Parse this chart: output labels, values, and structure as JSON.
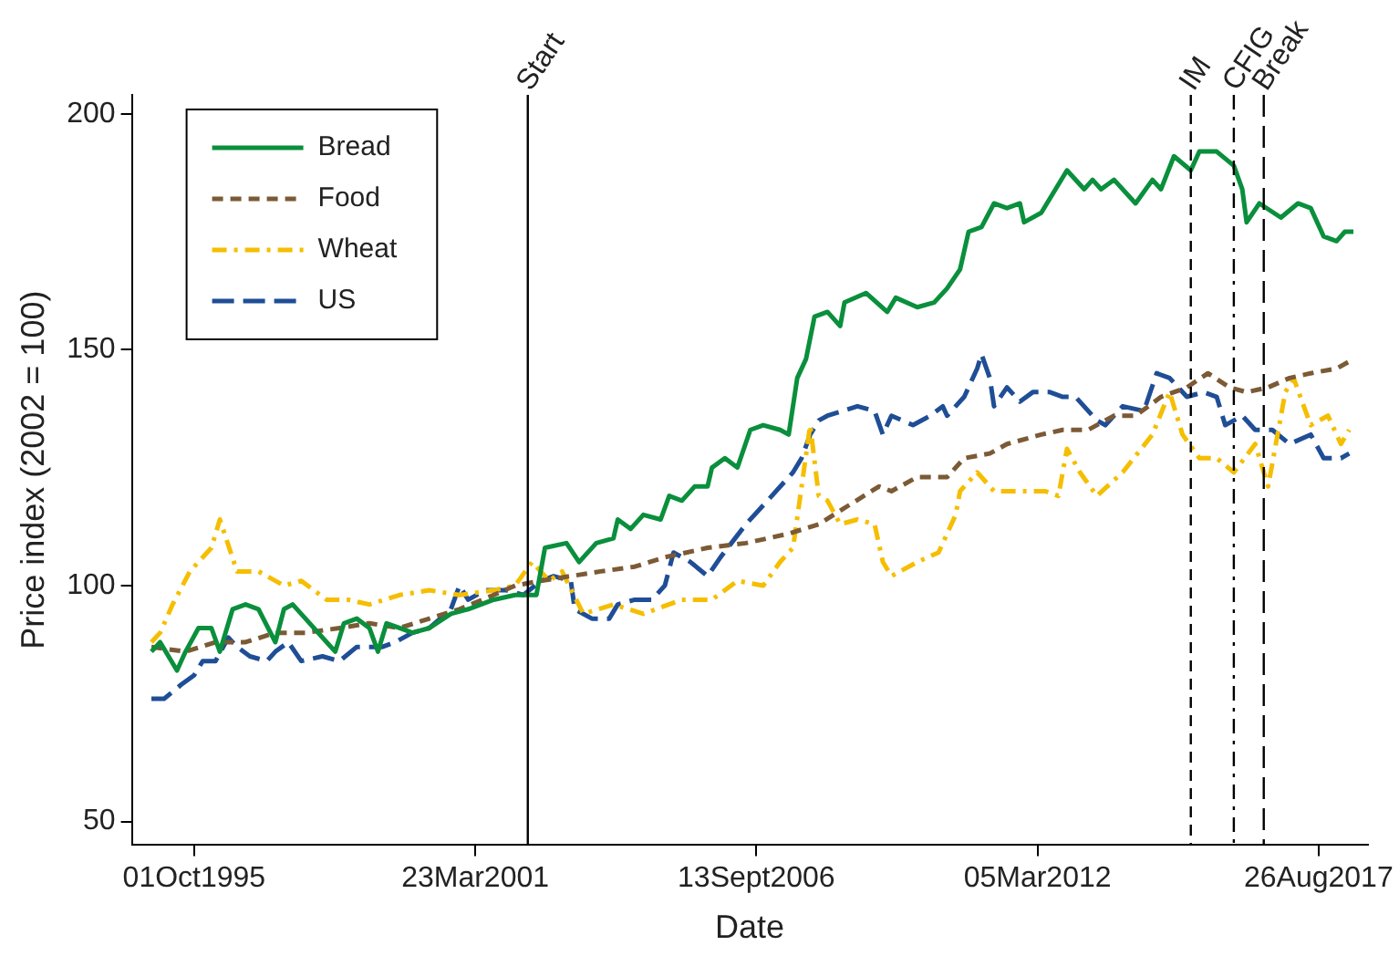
{
  "chart_data": {
    "type": "line",
    "xlabel": "Date",
    "ylabel": "Price index (2002 = 100)",
    "xlim": [
      "1994-07-15",
      "2018-08-10"
    ],
    "xticks": [
      {
        "value": "1995-10-01",
        "label": "01Oct1995"
      },
      {
        "value": "2001-03-23",
        "label": "23Mar2001"
      },
      {
        "value": "2006-09-13",
        "label": "13Sept2006"
      },
      {
        "value": "2012-03-05",
        "label": "05Mar2012"
      },
      {
        "value": "2017-08-26",
        "label": "26Aug2017"
      }
    ],
    "ylim": [
      45,
      204
    ],
    "yticks": [
      50,
      100,
      150,
      200
    ],
    "grid": false,
    "legend": "top left",
    "marker": "none",
    "ref_lines": [
      {
        "axis": "x",
        "value": "2002-04",
        "label": "Start",
        "color": "#000000",
        "line_style": "solid"
      },
      {
        "axis": "x",
        "value": "2015-03",
        "label": "IM",
        "color": "#000000",
        "line_style": "dashed"
      },
      {
        "axis": "x",
        "value": "2016-01",
        "label": "CFIG",
        "color": "#000000",
        "line_style": "dashdot"
      },
      {
        "axis": "x",
        "value": "2016-08",
        "label": "Break",
        "color": "#000000",
        "line_style": "longdash"
      }
    ],
    "series": [
      {
        "name": "Bread",
        "color": "#0a8f3c",
        "line_style": "solid",
        "x": [
          "1994-12",
          "1995-02",
          "1995-06",
          "1995-08",
          "1995-11",
          "1996-02",
          "1996-04",
          "1996-07",
          "1996-10",
          "1997-01",
          "1997-05",
          "1997-07",
          "1997-09",
          "1997-12",
          "1998-05",
          "1998-07",
          "1998-09",
          "1998-12",
          "1999-03",
          "1999-05",
          "1999-07",
          "1999-10",
          "2000-01",
          "2000-05",
          "2000-10",
          "2001-02",
          "2001-08",
          "2002-01",
          "2002-06",
          "2002-08",
          "2003-01",
          "2003-04",
          "2003-08",
          "2003-12",
          "2004-01",
          "2004-04",
          "2004-07",
          "2004-11",
          "2005-01",
          "2005-04",
          "2005-07",
          "2005-10",
          "2005-11",
          "2006-02",
          "2006-05",
          "2006-08",
          "2006-11",
          "2007-03",
          "2007-05",
          "2007-07",
          "2007-09",
          "2007-11",
          "2008-02",
          "2008-05",
          "2008-06",
          "2008-11",
          "2009-04",
          "2009-06",
          "2009-11",
          "2010-03",
          "2010-06",
          "2010-09",
          "2010-11",
          "2011-02",
          "2011-05",
          "2011-08",
          "2011-11",
          "2011-12",
          "2012-04",
          "2012-06",
          "2012-10",
          "2013-02",
          "2013-04",
          "2013-06",
          "2013-09",
          "2014-02",
          "2014-06",
          "2014-08",
          "2014-11",
          "2015-03",
          "2015-05",
          "2015-09",
          "2016-01",
          "2016-03",
          "2016-04",
          "2016-07",
          "2016-12",
          "2017-04",
          "2017-07",
          "2017-10",
          "2018-01",
          "2018-03",
          "2018-05"
        ],
        "values": [
          86,
          88,
          82,
          86,
          91,
          91,
          86,
          95,
          96,
          95,
          88,
          95,
          96,
          93,
          88,
          86,
          92,
          93,
          91,
          86,
          92,
          91,
          90,
          91,
          94,
          95,
          97,
          98,
          98,
          108,
          109,
          105,
          109,
          110,
          114,
          112,
          115,
          114,
          119,
          118,
          121,
          121,
          125,
          127,
          125,
          133,
          134,
          133,
          132,
          144,
          148,
          157,
          158,
          155,
          160,
          162,
          158,
          161,
          159,
          160,
          163,
          167,
          175,
          176,
          181,
          180,
          181,
          177,
          179,
          182,
          188,
          184,
          186,
          184,
          186,
          181,
          186,
          184,
          191,
          188,
          192,
          192,
          189,
          184,
          177,
          181,
          178,
          181,
          180,
          174,
          173,
          175,
          175
        ]
      },
      {
        "name": "Food",
        "color": "#7b5a35",
        "line_style": "dashed",
        "x": [
          "1994-12",
          "1995-08",
          "1996-03",
          "1996-10",
          "1997-05",
          "1997-12",
          "1998-08",
          "1999-03",
          "1999-10",
          "2000-05",
          "2000-12",
          "2001-08",
          "2002-01",
          "2002-07",
          "2003-09",
          "2004-05",
          "2004-12",
          "2005-10",
          "2006-07",
          "2007-05",
          "2007-12",
          "2008-07",
          "2009-02",
          "2009-05",
          "2009-11",
          "2010-06",
          "2010-10",
          "2011-04",
          "2011-08",
          "2012-04",
          "2012-09",
          "2013-03",
          "2013-09",
          "2014-02",
          "2014-08",
          "2015-02",
          "2015-07",
          "2015-12",
          "2016-04",
          "2016-09",
          "2017-02",
          "2017-07",
          "2018-01",
          "2018-05"
        ],
        "values": [
          87,
          86,
          88,
          88,
          90,
          90,
          91,
          92,
          91,
          93,
          95,
          98,
          100,
          101,
          103,
          104,
          106,
          108,
          109,
          111,
          113,
          117,
          121,
          120,
          123,
          123,
          127,
          128,
          130,
          132,
          133,
          133,
          136,
          136,
          140,
          142,
          145,
          142,
          141,
          142,
          144,
          145,
          146,
          148
        ]
      },
      {
        "name": "Wheat",
        "color": "#f5be00",
        "line_style": "dashdot",
        "x": [
          "1994-12",
          "1995-02",
          "1995-05",
          "1995-09",
          "1996-02",
          "1996-04",
          "1996-08",
          "1997-01",
          "1997-07",
          "1997-11",
          "1998-05",
          "1998-10",
          "1999-03",
          "1999-10",
          "2000-05",
          "2000-12",
          "2001-08",
          "2002-01",
          "2002-05",
          "2002-09",
          "2002-12",
          "2003-05",
          "2003-12",
          "2004-07",
          "2005-04",
          "2005-11",
          "2006-05",
          "2006-11",
          "2007-03",
          "2007-06",
          "2007-08",
          "2007-10",
          "2007-12",
          "2008-02",
          "2008-05",
          "2008-09",
          "2009-01",
          "2009-03",
          "2009-05",
          "2009-11",
          "2010-04",
          "2010-08",
          "2010-09",
          "2011-01",
          "2011-05",
          "2011-11",
          "2012-05",
          "2012-08",
          "2012-10",
          "2013-01",
          "2013-05",
          "2013-11",
          "2014-06",
          "2014-10",
          "2015-01",
          "2015-05",
          "2015-09",
          "2016-01",
          "2016-06",
          "2016-09",
          "2017-01",
          "2017-03",
          "2017-07",
          "2017-11",
          "2018-02",
          "2018-04"
        ],
        "values": [
          88,
          90,
          96,
          103,
          108,
          114,
          103,
          103,
          100,
          101,
          97,
          97,
          96,
          98,
          99,
          98,
          99,
          100,
          105,
          101,
          103,
          94,
          96,
          94,
          97,
          97,
          101,
          100,
          105,
          108,
          121,
          134,
          119,
          118,
          113,
          114,
          113,
          105,
          102,
          105,
          107,
          115,
          120,
          124,
          120,
          120,
          120,
          119,
          129,
          124,
          119,
          124,
          132,
          141,
          132,
          127,
          127,
          124,
          130,
          121,
          141,
          144,
          134,
          136,
          130,
          133
        ]
      },
      {
        "name": "US",
        "color": "#1f4e96",
        "line_style": "longdash",
        "x": [
          "1994-12",
          "1995-03",
          "1995-07",
          "1995-10",
          "1995-12",
          "1996-03",
          "1996-06",
          "1996-08",
          "1996-11",
          "1997-03",
          "1997-05",
          "1997-08",
          "1997-11",
          "1998-04",
          "1998-08",
          "1998-12",
          "1999-06",
          "1999-09",
          "2000-01",
          "2000-05",
          "2000-10",
          "2000-12",
          "2001-02",
          "2001-06",
          "2001-11",
          "2002-03",
          "2002-07",
          "2002-10",
          "2003-02",
          "2003-03",
          "2003-07",
          "2003-11",
          "2004-01",
          "2004-05",
          "2004-09",
          "2004-12",
          "2005-02",
          "2005-06",
          "2005-10",
          "2006-01",
          "2006-07",
          "2006-12",
          "2007-06",
          "2007-08",
          "2007-10",
          "2007-12",
          "2008-02",
          "2008-09",
          "2009-01",
          "2009-03",
          "2009-05",
          "2009-10",
          "2010-02",
          "2010-05",
          "2010-06",
          "2010-10",
          "2011-01",
          "2011-02",
          "2011-04",
          "2011-05",
          "2011-08",
          "2011-11",
          "2012-02",
          "2012-06",
          "2012-09",
          "2012-12",
          "2013-05",
          "2013-07",
          "2013-11",
          "2014-04",
          "2014-07",
          "2014-10",
          "2015-02",
          "2015-06",
          "2015-09",
          "2015-11",
          "2016-03",
          "2016-06",
          "2016-10",
          "2017-02",
          "2017-07",
          "2017-10",
          "2018-02",
          "2018-04"
        ],
        "values": [
          76,
          76,
          79,
          81,
          84,
          84,
          89,
          87,
          85,
          84,
          86,
          88,
          84,
          85,
          84,
          87,
          87,
          88,
          90,
          91,
          95,
          100,
          97,
          99,
          99,
          98,
          101,
          102,
          101,
          95,
          93,
          93,
          96,
          97,
          97,
          100,
          107,
          105,
          102,
          106,
          113,
          118,
          124,
          127,
          132,
          135,
          136,
          138,
          137,
          132,
          136,
          134,
          136,
          138,
          136,
          140,
          146,
          149,
          144,
          138,
          142,
          139,
          141,
          141,
          140,
          140,
          135,
          134,
          138,
          137,
          145,
          144,
          140,
          141,
          140,
          134,
          136,
          133,
          133,
          130,
          132,
          127,
          127,
          128
        ]
      }
    ]
  }
}
